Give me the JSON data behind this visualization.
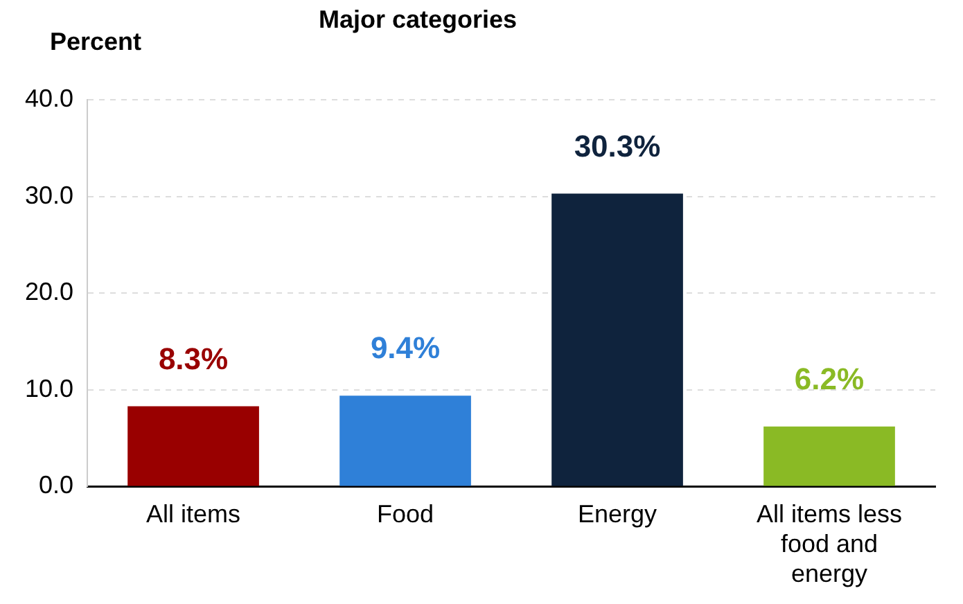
{
  "chart_data": {
    "type": "bar",
    "title": "Major categories",
    "ylabel": "Percent",
    "categories": [
      "All items",
      "Food",
      "Energy",
      "All items less food and energy"
    ],
    "values": [
      8.3,
      9.4,
      30.3,
      6.2
    ],
    "colors": [
      "#990000",
      "#2f80d8",
      "#0f233d",
      "#8aba25"
    ],
    "value_labels": [
      "8.3%",
      "9.4%",
      "30.3%",
      "6.2%"
    ],
    "ylim": [
      0,
      40
    ],
    "yticks": [
      {
        "value": 0,
        "label": "0.0"
      },
      {
        "value": 10,
        "label": "10.0"
      },
      {
        "value": 20,
        "label": "20.0"
      },
      {
        "value": 30,
        "label": "30.0"
      },
      {
        "value": 40,
        "label": "40.0"
      }
    ],
    "grid": "y",
    "legend": false
  }
}
